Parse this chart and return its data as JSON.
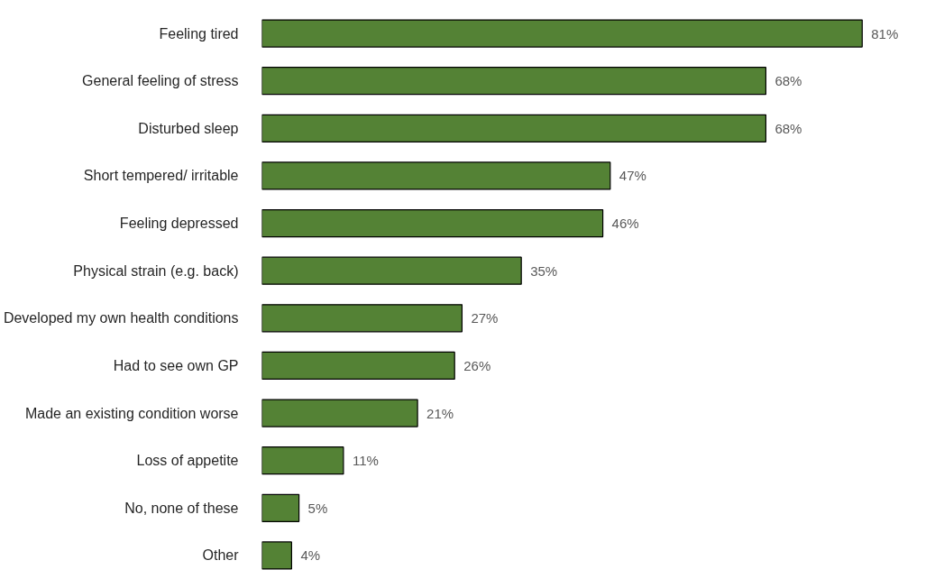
{
  "chart_data": {
    "type": "bar",
    "orientation": "horizontal",
    "categories": [
      "Feeling tired",
      "General feeling of stress",
      "Disturbed sleep",
      "Short tempered/ irritable",
      "Feeling depressed",
      "Physical strain (e.g. back)",
      "Developed my own health conditions",
      "Had to see own GP",
      "Made an existing condition worse",
      "Loss of appetite",
      "No, none of these",
      "Other"
    ],
    "values": [
      81,
      68,
      68,
      47,
      46,
      35,
      27,
      26,
      21,
      11,
      5,
      4
    ],
    "value_labels": [
      "81%",
      "68%",
      "68%",
      "47%",
      "46%",
      "35%",
      "27%",
      "26%",
      "21%",
      "11%",
      "5%",
      "4%"
    ],
    "color": "#548235",
    "grid": false
  }
}
